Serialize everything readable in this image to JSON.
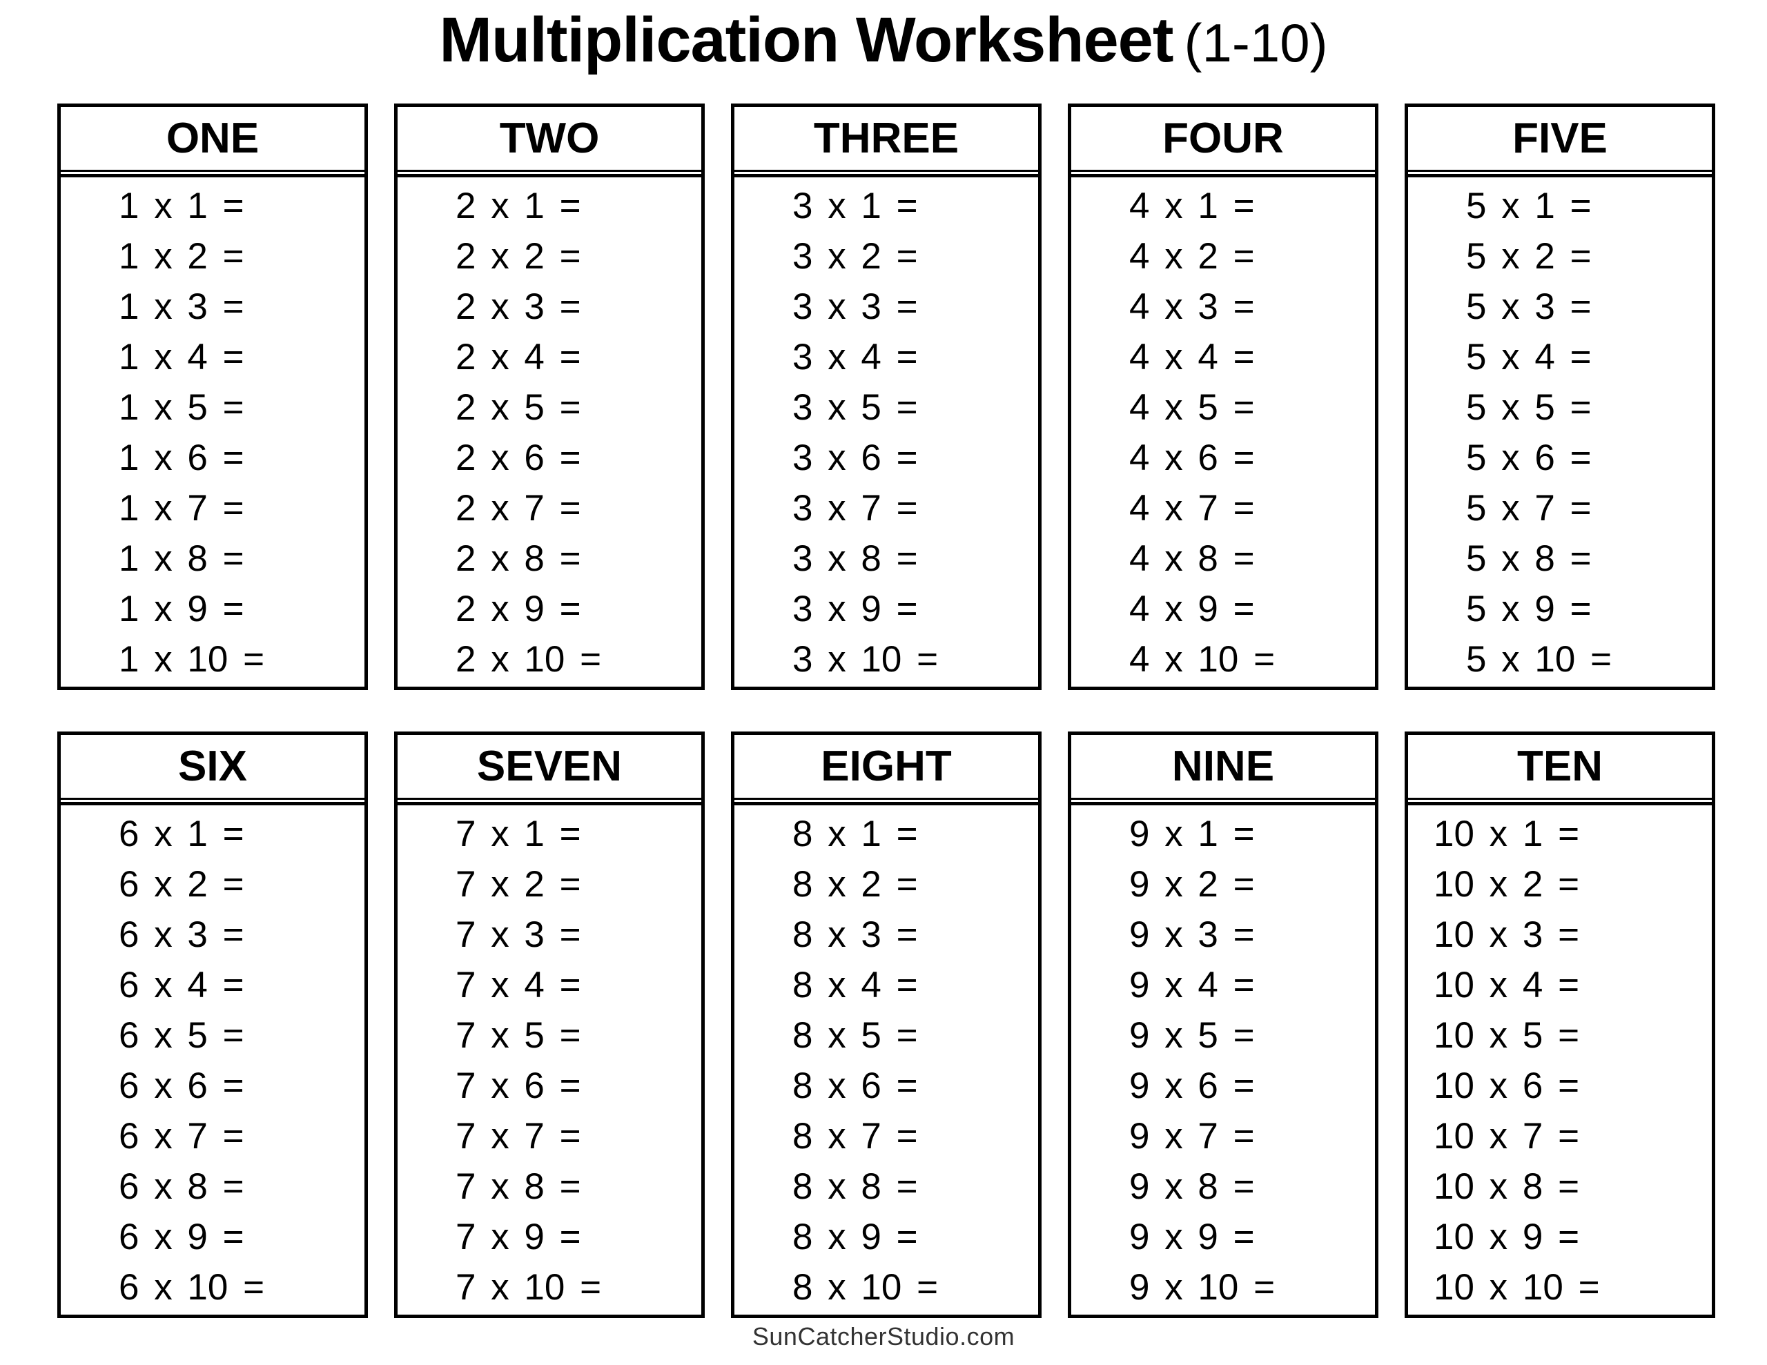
{
  "title": {
    "main": "Multiplication Worksheet",
    "suffix": "(1-10)"
  },
  "tables": [
    {
      "label": "ONE",
      "problems": [
        "1 x 1 =",
        "1 x 2 =",
        "1 x 3 =",
        "1 x 4 =",
        "1 x 5 =",
        "1 x 6 =",
        "1 x 7 =",
        "1 x 8 =",
        "1 x 9 =",
        "1 x 10 ="
      ]
    },
    {
      "label": "TWO",
      "problems": [
        "2 x 1 =",
        "2 x 2 =",
        "2 x 3 =",
        "2 x 4 =",
        "2 x 5 =",
        "2 x 6 =",
        "2 x 7 =",
        "2 x 8 =",
        "2 x 9 =",
        "2 x 10 ="
      ]
    },
    {
      "label": "THREE",
      "problems": [
        "3 x 1 =",
        "3 x 2 =",
        "3 x 3 =",
        "3 x 4 =",
        "3 x 5 =",
        "3 x 6 =",
        "3 x 7 =",
        "3 x 8 =",
        "3 x 9 =",
        "3 x 10 ="
      ]
    },
    {
      "label": "FOUR",
      "problems": [
        "4 x 1 =",
        "4 x 2 =",
        "4 x 3 =",
        "4 x 4 =",
        "4 x 5 =",
        "4 x 6 =",
        "4 x 7 =",
        "4 x 8 =",
        "4 x 9 =",
        "4 x 10 ="
      ]
    },
    {
      "label": "FIVE",
      "problems": [
        "5 x 1 =",
        "5 x 2 =",
        "5 x 3 =",
        "5 x 4 =",
        "5 x 5 =",
        "5 x 6 =",
        "5 x 7 =",
        "5 x 8 =",
        "5 x 9 =",
        "5 x 10 ="
      ]
    },
    {
      "label": "SIX",
      "problems": [
        "6 x 1 =",
        "6 x 2 =",
        "6 x 3 =",
        "6 x 4 =",
        "6 x 5 =",
        "6 x 6 =",
        "6 x 7 =",
        "6 x 8 =",
        "6 x 9 =",
        "6 x 10 ="
      ]
    },
    {
      "label": "SEVEN",
      "problems": [
        "7 x 1 =",
        "7 x 2 =",
        "7 x 3 =",
        "7 x 4 =",
        "7 x 5 =",
        "7 x 6 =",
        "7 x 7 =",
        "7 x 8 =",
        "7 x 9 =",
        "7 x 10 ="
      ]
    },
    {
      "label": "EIGHT",
      "problems": [
        "8 x 1 =",
        "8 x 2 =",
        "8 x 3 =",
        "8 x 4 =",
        "8 x 5 =",
        "8 x 6 =",
        "8 x 7 =",
        "8 x 8 =",
        "8 x 9 =",
        "8 x 10 ="
      ]
    },
    {
      "label": "NINE",
      "problems": [
        "9 x 1 =",
        "9 x 2 =",
        "9 x 3 =",
        "9 x 4 =",
        "9 x 5 =",
        "9 x 6 =",
        "9 x 7 =",
        "9 x 8 =",
        "9 x 9 =",
        "9 x 10 ="
      ]
    },
    {
      "label": "TEN",
      "problems": [
        "10 x 1 =",
        "10 x 2 =",
        "10 x 3 =",
        "10 x 4 =",
        "10 x 5 =",
        "10 x 6 =",
        "10 x 7 =",
        "10 x 8 =",
        "10 x 9 =",
        "10 x 10 ="
      ]
    }
  ],
  "footer": {
    "site": "SunCatcherStudio.com"
  },
  "colors": {
    "ink": "#000000",
    "footer_ink": "#333333",
    "background": "#ffffff"
  }
}
